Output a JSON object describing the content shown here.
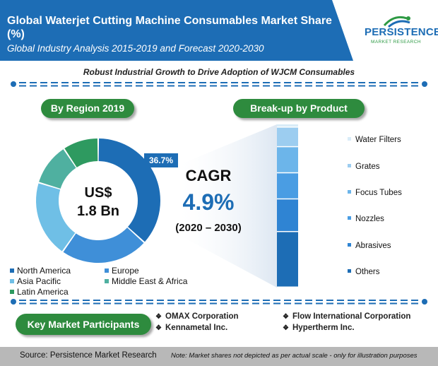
{
  "header": {
    "title": "Global Waterjet Cutting Machine Consumables Market Share (%)",
    "subtitle": "Global Industry Analysis 2015-2019 and Forecast 2020-2030"
  },
  "logo": {
    "brand": "PERSISTENCE",
    "tagline": "MARKET RESEARCH"
  },
  "subheading": "Robust Industrial Growth to Drive Adoption of WJCM Consumables",
  "region_section": {
    "title": "By Region 2019",
    "center_line1": "US$",
    "center_line2": "1.8 Bn",
    "callout": "36.7%"
  },
  "cagr": {
    "label": "CAGR",
    "value": "4.9%",
    "period": "(2020 – 2030)"
  },
  "product_section": {
    "title": "Break-up by Product"
  },
  "colors": {
    "brand_blue": "#1d6db5",
    "brand_green": "#2e8b3e",
    "north_america": "#1d6db5",
    "europe": "#3f8fd8",
    "asia_pacific": "#6fbfe6",
    "middle_east_africa": "#4fb0a0",
    "latin_america": "#2e9a60"
  },
  "chart_data": [
    {
      "type": "pie",
      "title": "By Region 2019",
      "categories": [
        "North America",
        "Europe",
        "Asia Pacific",
        "Middle East & Africa",
        "Latin America"
      ],
      "values": [
        36.7,
        23,
        20,
        11,
        9.3
      ],
      "labeled_values": {
        "North America": "36.7%"
      },
      "legend_placement": "bottom"
    },
    {
      "type": "bar",
      "title": "Break-up by Product",
      "stacked": true,
      "categories": [
        "Water Filters",
        "Grates",
        "Focus Tubes",
        "Nozzles",
        "Abrasives",
        "Others"
      ],
      "values": [
        2,
        12,
        16,
        16,
        20,
        34
      ],
      "legend_placement": "right"
    }
  ],
  "legend": {
    "items": [
      {
        "label": "North America",
        "color": "#1d6db5"
      },
      {
        "label": "Europe",
        "color": "#3f8fd8"
      },
      {
        "label": "Asia Pacific",
        "color": "#6fbfe6"
      },
      {
        "label": "Middle East & Africa",
        "color": "#4fb0a0"
      },
      {
        "label": "Latin America",
        "color": "#2e9a60"
      }
    ]
  },
  "products": {
    "items": [
      {
        "label": "Water Filters",
        "color": "#d9ecf8"
      },
      {
        "label": "Grates",
        "color": "#9ccdf0"
      },
      {
        "label": "Focus Tubes",
        "color": "#6cb5ea"
      },
      {
        "label": "Nozzles",
        "color": "#4a9de3"
      },
      {
        "label": "Abrasives",
        "color": "#2f84d3"
      },
      {
        "label": "Others",
        "color": "#1d6db5"
      }
    ]
  },
  "participants": {
    "title": "Key Market Participants",
    "items": [
      "OMAX Corporation",
      "Kennametal Inc.",
      "Flow International Corporation",
      "Hypertherm Inc."
    ]
  },
  "footer": {
    "source": "Source: Persistence Market Research",
    "note": "Note: Market shares not depicted as per actual scale - only for illustration purposes"
  }
}
